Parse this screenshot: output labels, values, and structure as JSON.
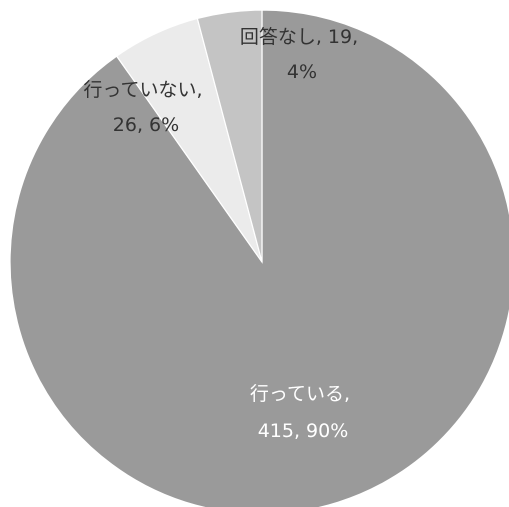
{
  "chart_data": {
    "type": "pie",
    "title": "",
    "slices": [
      {
        "label": "行っている",
        "value": 415,
        "percent": "90%",
        "color": "#9a9a9a",
        "label_color": "#ffffff"
      },
      {
        "label": "行っていない",
        "value": 26,
        "percent": "6%",
        "color": "#ebebeb",
        "label_color": "#333333"
      },
      {
        "label": "回答なし",
        "value": 19,
        "percent": "4%",
        "color": "#c4c4c4",
        "label_color": "#333333"
      }
    ],
    "data_labels": [
      {
        "line1": "回答なし, 19,",
        "line2": "4%"
      },
      {
        "line1": "行っていない,",
        "line2": "26, 6%"
      },
      {
        "line1": "行っている,",
        "line2": "415, 90%"
      }
    ],
    "start_angle": "12 o'clock",
    "direction": "clockwise",
    "legend": "none"
  }
}
